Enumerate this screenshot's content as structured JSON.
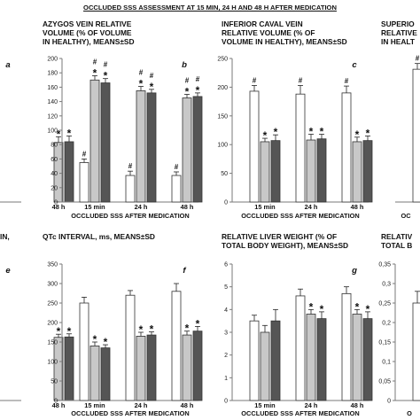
{
  "page_title": "OCCLUDED SSS ASSESSMENT AT 15 MIN, 24 H AND 48 H AFTER MEDICATION",
  "colors": {
    "series_a": "#ffffff",
    "series_b": "#c8c8c8",
    "series_c": "#555555",
    "axis": "#7a7a7a",
    "error": "#222222"
  },
  "chart_data": [
    {
      "type": "bar",
      "panel_letter": "a",
      "title_lines": [],
      "categories": [
        "",
        "48 h"
      ],
      "xlabel": "",
      "ylim": [
        0,
        200
      ],
      "series": [
        {
          "values": [
            null,
            null
          ]
        },
        {
          "values": [
            null,
            83
          ],
          "err": [
            null,
            8
          ],
          "marks": [
            null,
            "*"
          ]
        },
        {
          "values": [
            null,
            84
          ],
          "err": [
            null,
            8
          ],
          "marks": [
            null,
            "*"
          ]
        }
      ]
    },
    {
      "type": "bar",
      "panel_letter": "b",
      "title_lines": [
        "AZYGOS VEIN RELATIVE",
        "VOLUME (% OF VOLUME",
        "IN HEALTHY), MEANS±SD"
      ],
      "categories": [
        "15 min",
        "24 h",
        "48 h"
      ],
      "xlabel": "OCCLUDED SSS AFTER MEDICATION",
      "ylim": [
        0,
        200
      ],
      "yticks": [
        0,
        20,
        40,
        60,
        80,
        100,
        120,
        140,
        160,
        180,
        200
      ],
      "series": [
        {
          "values": [
            55,
            37,
            37
          ],
          "err": [
            5,
            6,
            5
          ],
          "marks": [
            "#",
            "#",
            "#"
          ]
        },
        {
          "values": [
            170,
            155,
            145
          ],
          "err": [
            6,
            6,
            5
          ],
          "marks": [
            "#\n*",
            "#\n*",
            "#\n*"
          ]
        },
        {
          "values": [
            166,
            152,
            147
          ],
          "err": [
            6,
            5,
            5
          ],
          "marks": [
            "#\n*",
            "#\n*",
            "#\n*"
          ]
        }
      ]
    },
    {
      "type": "bar",
      "panel_letter": "c",
      "title_lines": [
        "INFERIOR CAVAL VEIN",
        "RELATIVE VOLUME (% OF",
        "VOLUME IN HEALTHY), MEANS±SD"
      ],
      "categories": [
        "15 min",
        "24 h",
        "48 h"
      ],
      "xlabel": "OCCLUDED SSS AFTER MEDICATION",
      "ylim": [
        0,
        250
      ],
      "yticks": [
        0,
        50,
        100,
        150,
        200,
        250
      ],
      "series": [
        {
          "values": [
            193,
            188,
            190
          ],
          "err": [
            10,
            15,
            12
          ],
          "marks": [
            "#",
            "#",
            "#"
          ]
        },
        {
          "values": [
            105,
            108,
            105
          ],
          "err": [
            6,
            10,
            8
          ],
          "marks": [
            "*",
            "*",
            "*"
          ]
        },
        {
          "values": [
            107,
            110,
            107
          ],
          "err": [
            10,
            8,
            8
          ],
          "marks": [
            "*",
            "*",
            "*"
          ]
        }
      ]
    },
    {
      "type": "bar",
      "panel_letter": "",
      "title_lines": [
        "SUPERIO",
        "RELATIVE",
        "IN HEALT"
      ],
      "categories": [
        ""
      ],
      "xlabel": "OC",
      "ylim": [
        0,
        200
      ],
      "series": [
        {
          "values": [
            185
          ],
          "err": [
            8
          ],
          "marks": [
            "#"
          ]
        },
        {
          "values": [
            null
          ]
        },
        {
          "values": [
            null
          ]
        }
      ]
    },
    {
      "type": "bar",
      "panel_letter": "e",
      "title_lines": [
        "IN,"
      ],
      "categories": [
        "",
        "48 h"
      ],
      "xlabel": "",
      "ylim": [
        0,
        350
      ],
      "series": [
        {
          "values": [
            null,
            null
          ]
        },
        {
          "values": [
            null,
            162
          ],
          "err": [
            null,
            8
          ],
          "marks": [
            null,
            "*"
          ]
        },
        {
          "values": [
            null,
            163
          ],
          "err": [
            null,
            8
          ],
          "marks": [
            null,
            "*"
          ]
        }
      ]
    },
    {
      "type": "bar",
      "panel_letter": "f",
      "title_lines": [
        "QTc INTERVAL, ms, MEANS±SD"
      ],
      "categories": [
        "15 min",
        "24 h",
        "48 h"
      ],
      "xlabel": "OCCLUDED SSS AFTER MEDICATION",
      "ylim": [
        0,
        350
      ],
      "yticks": [
        0,
        50,
        100,
        150,
        200,
        250,
        300,
        350
      ],
      "series": [
        {
          "values": [
            250,
            270,
            280
          ],
          "err": [
            15,
            12,
            20
          ]
        },
        {
          "values": [
            140,
            165,
            168
          ],
          "err": [
            10,
            10,
            10
          ],
          "marks": [
            "*",
            "*",
            "*"
          ]
        },
        {
          "values": [
            135,
            168,
            178
          ],
          "err": [
            8,
            8,
            12
          ],
          "marks": [
            "*",
            "*",
            "*"
          ]
        }
      ]
    },
    {
      "type": "bar",
      "panel_letter": "g",
      "title_lines": [
        "RELATIVE LIVER WEIGHT (% OF",
        "TOTAL BODY WEIGHT), MEANS±SD"
      ],
      "categories": [
        "15 min",
        "24 h",
        "48 h"
      ],
      "xlabel": "OCCLUDED SSS AFTER MEDICATION",
      "ylim": [
        0,
        6
      ],
      "yticks": [
        0,
        1,
        2,
        3,
        4,
        5,
        6
      ],
      "series": [
        {
          "values": [
            3.5,
            4.6,
            4.7
          ],
          "err": [
            0.25,
            0.3,
            0.3
          ]
        },
        {
          "values": [
            3.0,
            3.8,
            3.8
          ],
          "err": [
            0.3,
            0.2,
            0.2
          ],
          "marks": [
            null,
            "*",
            "*"
          ]
        },
        {
          "values": [
            3.5,
            3.6,
            3.6
          ],
          "err": [
            0.5,
            0.3,
            0.3
          ],
          "marks": [
            null,
            "*",
            "*"
          ]
        }
      ]
    },
    {
      "type": "bar",
      "panel_letter": "",
      "title_lines": [
        "RELATIV",
        "TOTAL B"
      ],
      "categories": [
        ""
      ],
      "xlabel": "O",
      "ylim": [
        0,
        0.35
      ],
      "yticks": [
        0,
        0.05,
        0.1,
        0.15,
        0.2,
        0.25,
        0.3,
        0.35
      ],
      "ytick_labels": [
        "0",
        "0,05",
        "0,1",
        "0,15",
        "0,2",
        "0,25",
        "0,3",
        "0,35"
      ],
      "series": [
        {
          "values": [
            0.25
          ],
          "err": [
            0.03
          ]
        },
        {
          "values": [
            null
          ]
        },
        {
          "values": [
            null
          ]
        }
      ]
    }
  ]
}
